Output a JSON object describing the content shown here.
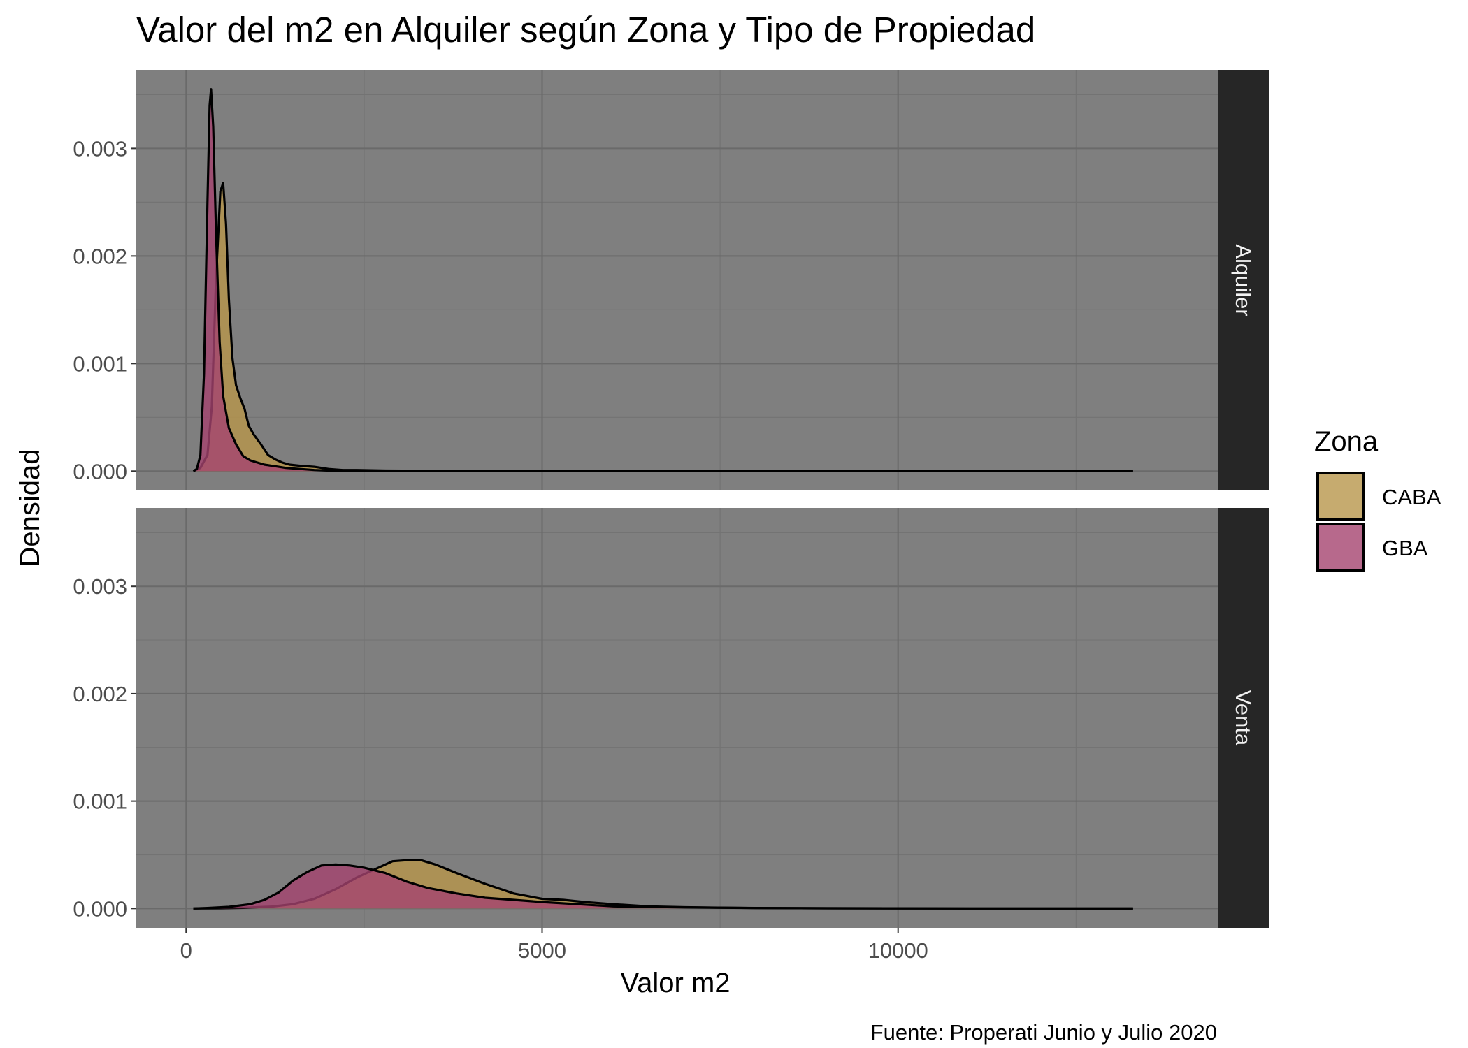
{
  "chart_data": {
    "type": "area",
    "title": "Valor del m2 en Alquiler según Zona y Tipo de Propiedad",
    "xlabel": "Valor m2",
    "ylabel": "Densidad",
    "caption": "Fuente: Properati Junio y Julio 2020",
    "xlim": [
      -700,
      14500
    ],
    "ylim": [
      -0.00018,
      0.00373
    ],
    "x_ticks": [
      0,
      5000,
      10000
    ],
    "x_tick_labels": [
      "0",
      "5000",
      "10000"
    ],
    "y_ticks": [
      0,
      0.001,
      0.002,
      0.003
    ],
    "y_tick_labels": [
      "0.000",
      "0.001",
      "0.002",
      "0.003"
    ],
    "grid": true,
    "legend": {
      "title": "Zona",
      "position": "right",
      "items": [
        {
          "label": "CABA",
          "color": "#B8964B"
        },
        {
          "label": "GBA",
          "color": "#A5436F"
        }
      ]
    },
    "panels": [
      {
        "label": "Alquiler",
        "series": [
          {
            "name": "CABA",
            "color": "#B8964B",
            "points": [
              [
                100,
                0
              ],
              [
                200,
                3e-05
              ],
              [
                300,
                0.00015
              ],
              [
                360,
                0.0006
              ],
              [
                420,
                0.0018
              ],
              [
                480,
                0.0026
              ],
              [
                520,
                0.00268
              ],
              [
                560,
                0.0023
              ],
              [
                600,
                0.0016
              ],
              [
                650,
                0.00105
              ],
              [
                700,
                0.0008
              ],
              [
                760,
                0.00068
              ],
              [
                820,
                0.00058
              ],
              [
                880,
                0.00042
              ],
              [
                950,
                0.00034
              ],
              [
                1050,
                0.00025
              ],
              [
                1150,
                0.00015
              ],
              [
                1250,
                0.00011
              ],
              [
                1350,
                8e-05
              ],
              [
                1450,
                6e-05
              ],
              [
                1600,
                5e-05
              ],
              [
                1800,
                4e-05
              ],
              [
                2000,
                2e-05
              ],
              [
                2200,
                1e-05
              ],
              [
                2400,
                1e-05
              ],
              [
                2800,
                5e-06
              ],
              [
                3500,
                3e-06
              ],
              [
                5000,
                1e-06
              ],
              [
                8000,
                0
              ],
              [
                13300,
                0
              ]
            ]
          },
          {
            "name": "GBA",
            "color": "#A5436F",
            "points": [
              [
                100,
                0
              ],
              [
                150,
                2e-05
              ],
              [
                200,
                0.00015
              ],
              [
                250,
                0.0009
              ],
              [
                300,
                0.0025
              ],
              [
                330,
                0.0034
              ],
              [
                350,
                0.00355
              ],
              [
                380,
                0.0032
              ],
              [
                420,
                0.0022
              ],
              [
                470,
                0.0012
              ],
              [
                520,
                0.0007
              ],
              [
                600,
                0.0004
              ],
              [
                700,
                0.00025
              ],
              [
                800,
                0.00014
              ],
              [
                900,
                0.0001
              ],
              [
                1000,
                8e-05
              ],
              [
                1100,
                6e-05
              ],
              [
                1200,
                5e-05
              ],
              [
                1300,
                4e-05
              ],
              [
                1400,
                3e-05
              ],
              [
                1600,
                2e-05
              ],
              [
                1800,
                1e-05
              ],
              [
                2000,
                5e-06
              ],
              [
                2300,
                3e-06
              ],
              [
                2800,
                2e-06
              ],
              [
                3500,
                1e-06
              ],
              [
                5000,
                0
              ],
              [
                13300,
                0
              ]
            ]
          }
        ]
      },
      {
        "label": "Venta",
        "series": [
          {
            "name": "CABA",
            "color": "#B8964B",
            "points": [
              [
                100,
                0
              ],
              [
                500,
                2e-06
              ],
              [
                800,
                6e-06
              ],
              [
                1200,
                1.8e-05
              ],
              [
                1500,
                4e-05
              ],
              [
                1800,
                9e-05
              ],
              [
                2100,
                0.00018
              ],
              [
                2400,
                0.00029
              ],
              [
                2700,
                0.00038
              ],
              [
                2900,
                0.00044
              ],
              [
                3100,
                0.00045
              ],
              [
                3300,
                0.00045
              ],
              [
                3500,
                0.00041
              ],
              [
                3800,
                0.00033
              ],
              [
                4200,
                0.00023
              ],
              [
                4600,
                0.00014
              ],
              [
                5000,
                9e-05
              ],
              [
                5300,
                8e-05
              ],
              [
                5600,
                6e-05
              ],
              [
                6000,
                4e-05
              ],
              [
                6500,
                2e-05
              ],
              [
                7000,
                1.2e-05
              ],
              [
                8000,
                4e-06
              ],
              [
                9000,
                2e-06
              ],
              [
                11000,
                0
              ],
              [
                13300,
                0
              ]
            ]
          },
          {
            "name": "GBA",
            "color": "#A5436F",
            "points": [
              [
                100,
                0
              ],
              [
                300,
                5e-06
              ],
              [
                600,
                1.5e-05
              ],
              [
                900,
                4e-05
              ],
              [
                1100,
                8e-05
              ],
              [
                1300,
                0.00015
              ],
              [
                1500,
                0.00026
              ],
              [
                1700,
                0.00034
              ],
              [
                1900,
                0.0004
              ],
              [
                2100,
                0.00041
              ],
              [
                2300,
                0.0004
              ],
              [
                2500,
                0.00038
              ],
              [
                2800,
                0.00033
              ],
              [
                3100,
                0.00025
              ],
              [
                3400,
                0.00019
              ],
              [
                3800,
                0.00014
              ],
              [
                4200,
                0.0001
              ],
              [
                4600,
                8e-05
              ],
              [
                5000,
                6e-05
              ],
              [
                5500,
                4e-05
              ],
              [
                6000,
                2e-05
              ],
              [
                6500,
                1.5e-05
              ],
              [
                7000,
                1e-05
              ],
              [
                8000,
                5e-06
              ],
              [
                9000,
                2e-06
              ],
              [
                11000,
                0
              ],
              [
                13300,
                0
              ]
            ]
          }
        ]
      }
    ]
  }
}
